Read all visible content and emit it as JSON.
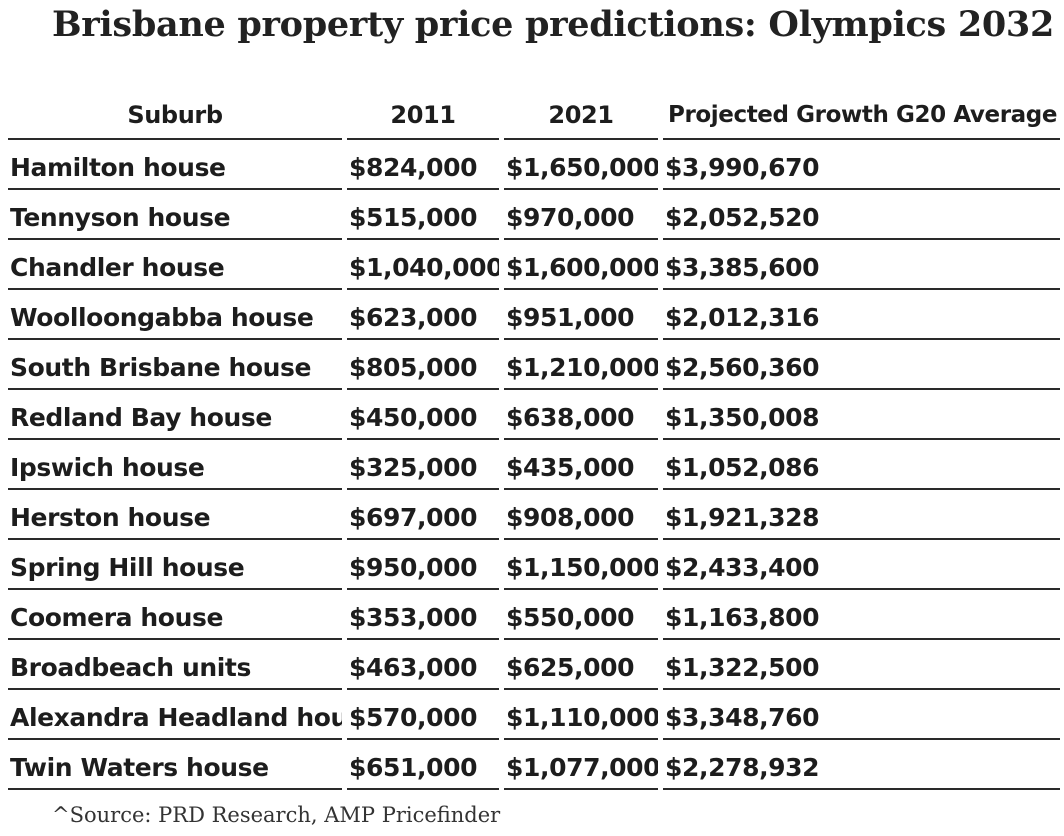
{
  "title": "Brisbane property price predictions: Olympics 2032",
  "chart_data": {
    "type": "table",
    "columns": [
      "Suburb",
      "2011",
      "2021",
      "Projected Growth G20 Average"
    ],
    "rows": [
      [
        "Hamilton house",
        "$824,000",
        "$1,650,000",
        "$3,990,670"
      ],
      [
        "Tennyson house",
        "$515,000",
        "$970,000",
        "$2,052,520"
      ],
      [
        "Chandler house",
        "$1,040,000",
        "$1,600,000",
        "$3,385,600"
      ],
      [
        "Woolloongabba house",
        "$623,000",
        "$951,000",
        "$2,012,316"
      ],
      [
        "South Brisbane house",
        "$805,000",
        "$1,210,000",
        "$2,560,360"
      ],
      [
        "Redland Bay house",
        "$450,000",
        "$638,000",
        "$1,350,008"
      ],
      [
        "Ipswich house",
        "$325,000",
        "$435,000",
        "$1,052,086"
      ],
      [
        "Herston house",
        "$697,000",
        "$908,000",
        "$1,921,328"
      ],
      [
        "Spring Hill house",
        "$950,000",
        "$1,150,000",
        "$2,433,400"
      ],
      [
        "Coomera house",
        "$353,000",
        "$550,000",
        "$1,163,800"
      ],
      [
        "Broadbeach units",
        "$463,000",
        "$625,000",
        "$1,322,500"
      ],
      [
        "Alexandra Headland house",
        "$570,000",
        "$1,110,000",
        "$3,348,760"
      ],
      [
        "Twin Waters house",
        "$651,000",
        "$1,077,000",
        "$2,278,932"
      ]
    ]
  },
  "source": "^Source: PRD Research, AMP Pricefinder"
}
